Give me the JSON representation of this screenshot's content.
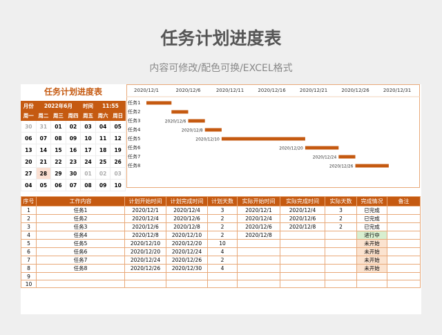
{
  "header": {
    "title": "任务计划进度表",
    "subtitle": "内容可修改/配色可换/EXCEL格式"
  },
  "calendar": {
    "title": "任务计划进度表",
    "month_label": "月份",
    "month": "2022年6月",
    "time_label": "时间",
    "time": "11:55",
    "weekdays": [
      "周一",
      "周二",
      "周三",
      "周四",
      "周五",
      "周六",
      "周日"
    ],
    "weeks": [
      [
        "30",
        "31",
        "01",
        "02",
        "03",
        "04",
        "05"
      ],
      [
        "06",
        "07",
        "08",
        "09",
        "10",
        "11",
        "12"
      ],
      [
        "13",
        "14",
        "15",
        "16",
        "17",
        "18",
        "19"
      ],
      [
        "20",
        "21",
        "22",
        "23",
        "24",
        "25",
        "26"
      ],
      [
        "27",
        "28",
        "29",
        "30",
        "01",
        "02",
        "03"
      ],
      [
        "04",
        "05",
        "06",
        "07",
        "08",
        "09",
        "10"
      ]
    ]
  },
  "gantt": {
    "axis_labels": [
      "2020/12/1",
      "2020/12/6",
      "2020/12/11",
      "2020/12/16",
      "2020/12/21",
      "2020/12/26",
      "2020/12/31"
    ]
  },
  "table": {
    "columns": [
      "序号",
      "工作内容",
      "计划开始时间",
      "计划完成时间",
      "计划天数",
      "实际开始时间",
      "实际完成时间",
      "实际天数",
      "完成情况",
      "备注"
    ],
    "rows": [
      {
        "no": 1,
        "task": "任务1",
        "plan_start": "2020/12/1",
        "plan_end": "2020/12/4",
        "plan_days": 3,
        "actual_start": "2020/12/1",
        "actual_end": "2020/12/4",
        "actual_days": 3,
        "status": "已完成"
      },
      {
        "no": 2,
        "task": "任务2",
        "plan_start": "2020/12/4",
        "plan_end": "2020/12/6",
        "plan_days": 2,
        "actual_start": "2020/12/4",
        "actual_end": "2020/12/6",
        "actual_days": 2,
        "status": "已完成"
      },
      {
        "no": 3,
        "task": "任务3",
        "plan_start": "2020/12/6",
        "plan_end": "2020/12/8",
        "plan_days": 2,
        "actual_start": "2020/12/6",
        "actual_end": "2020/12/8",
        "actual_days": 2,
        "status": "已完成"
      },
      {
        "no": 4,
        "task": "任务4",
        "plan_start": "2020/12/8",
        "plan_end": "2020/12/10",
        "plan_days": 2,
        "actual_start": "2020/12/8",
        "status": "进行中"
      },
      {
        "no": 5,
        "task": "任务5",
        "plan_start": "2020/12/10",
        "plan_end": "2020/12/20",
        "plan_days": 10,
        "status": "未开始"
      },
      {
        "no": 6,
        "task": "任务6",
        "plan_start": "2020/12/20",
        "plan_end": "2020/12/24",
        "plan_days": 4,
        "status": "未开始"
      },
      {
        "no": 7,
        "task": "任务7",
        "plan_start": "2020/12/24",
        "plan_end": "2020/12/26",
        "plan_days": 2,
        "status": "未开始"
      },
      {
        "no": 8,
        "task": "任务8",
        "plan_start": "2020/12/26",
        "plan_end": "2020/12/30",
        "plan_days": 4,
        "status": "未开始"
      },
      {
        "no": 9
      },
      {
        "no": 10
      }
    ]
  }
}
